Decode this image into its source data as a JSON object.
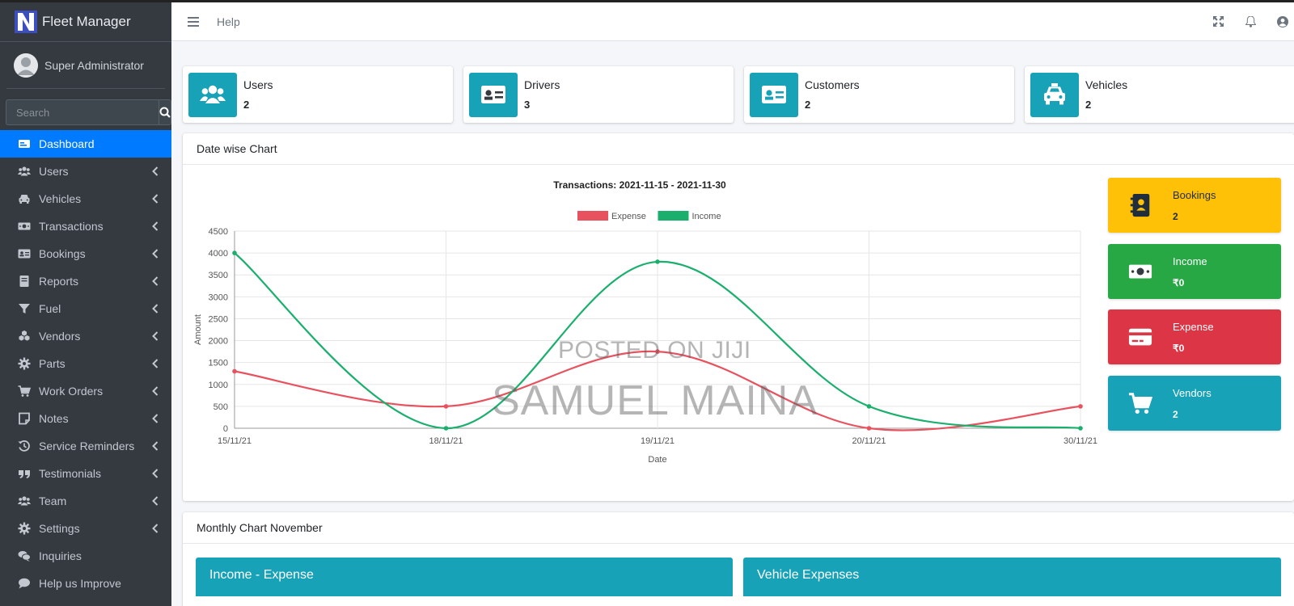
{
  "app": {
    "brand": "Fleet Manager",
    "user": "Super Administrator",
    "search_placeholder": "Search"
  },
  "sidebar": {
    "items": [
      {
        "label": "Dashboard",
        "icon": "dashboard-icon",
        "active": true,
        "chevron": false
      },
      {
        "label": "Users",
        "icon": "users-icon",
        "chevron": true
      },
      {
        "label": "Vehicles",
        "icon": "car-icon",
        "chevron": true
      },
      {
        "label": "Transactions",
        "icon": "money-icon",
        "chevron": true
      },
      {
        "label": "Bookings",
        "icon": "id-card-icon",
        "chevron": true
      },
      {
        "label": "Reports",
        "icon": "book-icon",
        "chevron": true
      },
      {
        "label": "Fuel",
        "icon": "filter-icon",
        "chevron": true
      },
      {
        "label": "Vendors",
        "icon": "cubes-icon",
        "chevron": true
      },
      {
        "label": "Parts",
        "icon": "gear-icon",
        "chevron": true
      },
      {
        "label": "Work Orders",
        "icon": "cart-icon",
        "chevron": true
      },
      {
        "label": "Notes",
        "icon": "note-icon",
        "chevron": true
      },
      {
        "label": "Service Reminders",
        "icon": "history-icon",
        "chevron": true
      },
      {
        "label": "Testimonials",
        "icon": "quote-icon",
        "chevron": true
      },
      {
        "label": "Team",
        "icon": "team-icon",
        "chevron": true
      },
      {
        "label": "Settings",
        "icon": "gear-icon",
        "chevron": true
      },
      {
        "label": "Inquiries",
        "icon": "comments-icon",
        "chevron": false
      },
      {
        "label": "Help us Improve",
        "icon": "comment-icon",
        "chevron": false
      }
    ]
  },
  "topbar": {
    "help": "Help"
  },
  "info_boxes": [
    {
      "label": "Users",
      "value": "2",
      "icon": "users-icon"
    },
    {
      "label": "Drivers",
      "value": "3",
      "icon": "id-card-icon"
    },
    {
      "label": "Customers",
      "value": "2",
      "icon": "address-card-icon"
    },
    {
      "label": "Vehicles",
      "value": "2",
      "icon": "taxi-icon"
    }
  ],
  "date_chart": {
    "header": "Date wise Chart"
  },
  "stats": [
    {
      "label": "Bookings",
      "value": "2",
      "color": "#ffc107",
      "text_color": "#1f2d3d",
      "icon": "address-book-icon"
    },
    {
      "label": "Income",
      "value": "₹0",
      "color": "#28a745",
      "text_color": "#ffffff",
      "icon": "money-icon"
    },
    {
      "label": "Expense",
      "value": "₹0",
      "color": "#dc3545",
      "text_color": "#ffffff",
      "icon": "credit-card-icon"
    },
    {
      "label": "Vendors",
      "value": "2",
      "color": "#17a2b8",
      "text_color": "#ffffff",
      "icon": "cart-icon"
    }
  ],
  "watermark": {
    "line1": "POSTED ON JIJI",
    "line2": "SAMUEL MAINA"
  },
  "monthly": {
    "header": "Monthly Chart November",
    "panels": [
      "Income - Expense",
      "Vehicle Expenses"
    ]
  },
  "chart_data": {
    "type": "line",
    "title": "Transactions: 2021-11-15 - 2021-11-30",
    "xlabel": "Date",
    "ylabel": "Amount",
    "categories": [
      "15/11/21",
      "18/11/21",
      "19/11/21",
      "20/11/21",
      "30/11/21"
    ],
    "ylim": [
      0,
      4500
    ],
    "yticks": [
      0,
      500,
      1000,
      1500,
      2000,
      2500,
      3000,
      3500,
      4000,
      4500
    ],
    "legend_position": "top",
    "grid": true,
    "series": [
      {
        "name": "Expense",
        "color": "#e8525f",
        "values": [
          1300,
          500,
          1750,
          0,
          500
        ]
      },
      {
        "name": "Income",
        "color": "#1aaf6c",
        "values": [
          4000,
          0,
          3800,
          500,
          0
        ]
      }
    ]
  }
}
